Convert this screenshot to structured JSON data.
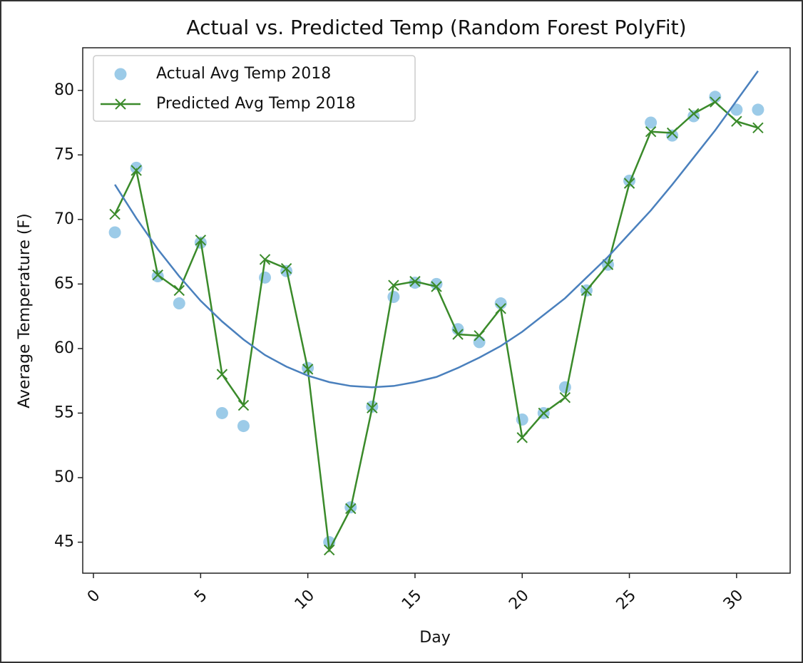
{
  "chart_data": {
    "type": "line",
    "title": "Actual vs. Predicted Temp (Random Forest PolyFit)",
    "xlabel": "Day",
    "ylabel": "Average Temperature (F)",
    "x": [
      1,
      2,
      3,
      4,
      5,
      6,
      7,
      8,
      9,
      10,
      11,
      12,
      13,
      14,
      15,
      16,
      17,
      18,
      19,
      20,
      21,
      22,
      23,
      24,
      25,
      26,
      27,
      28,
      29,
      30,
      31
    ],
    "series": [
      {
        "name": "Actual Avg Temp 2018",
        "type": "scatter",
        "color": "#9ccbe8",
        "values": [
          69.0,
          74.0,
          65.6,
          63.5,
          68.2,
          55.0,
          54.0,
          65.5,
          66.0,
          58.5,
          45.0,
          47.7,
          55.5,
          64.0,
          65.1,
          65.0,
          61.5,
          60.5,
          63.5,
          54.5,
          55.0,
          57.0,
          64.5,
          66.5,
          73.0,
          77.5,
          76.5,
          78.0,
          79.5,
          78.5,
          78.5
        ]
      },
      {
        "name": "Predicted Avg Temp 2018",
        "type": "line",
        "marker": "x",
        "color": "#3a8a2a",
        "values": [
          70.4,
          73.8,
          65.7,
          64.5,
          68.4,
          58.0,
          55.6,
          66.9,
          66.2,
          58.4,
          44.4,
          47.6,
          55.4,
          64.9,
          65.2,
          64.8,
          61.1,
          61.0,
          63.1,
          53.1,
          55.0,
          56.2,
          64.5,
          66.5,
          72.8,
          76.8,
          76.7,
          78.2,
          79.1,
          77.6,
          77.1
        ]
      },
      {
        "type": "line",
        "color": "#4a80bd",
        "values": [
          72.7,
          70.1,
          67.7,
          65.6,
          63.7,
          62.1,
          60.7,
          59.5,
          58.6,
          57.9,
          57.4,
          57.1,
          57.0,
          57.1,
          57.4,
          57.8,
          58.5,
          59.3,
          60.2,
          61.3,
          62.6,
          63.9,
          65.5,
          67.1,
          68.9,
          70.7,
          72.7,
          74.8,
          76.9,
          79.2,
          81.5
        ]
      }
    ],
    "xlim": [
      -0.5,
      32.5
    ],
    "xticks": [
      0,
      5,
      10,
      15,
      20,
      25,
      30
    ],
    "ylim": [
      42.6,
      83.3
    ],
    "yticks": [
      45,
      50,
      55,
      60,
      65,
      70,
      75,
      80
    ],
    "legend": "upper left"
  }
}
